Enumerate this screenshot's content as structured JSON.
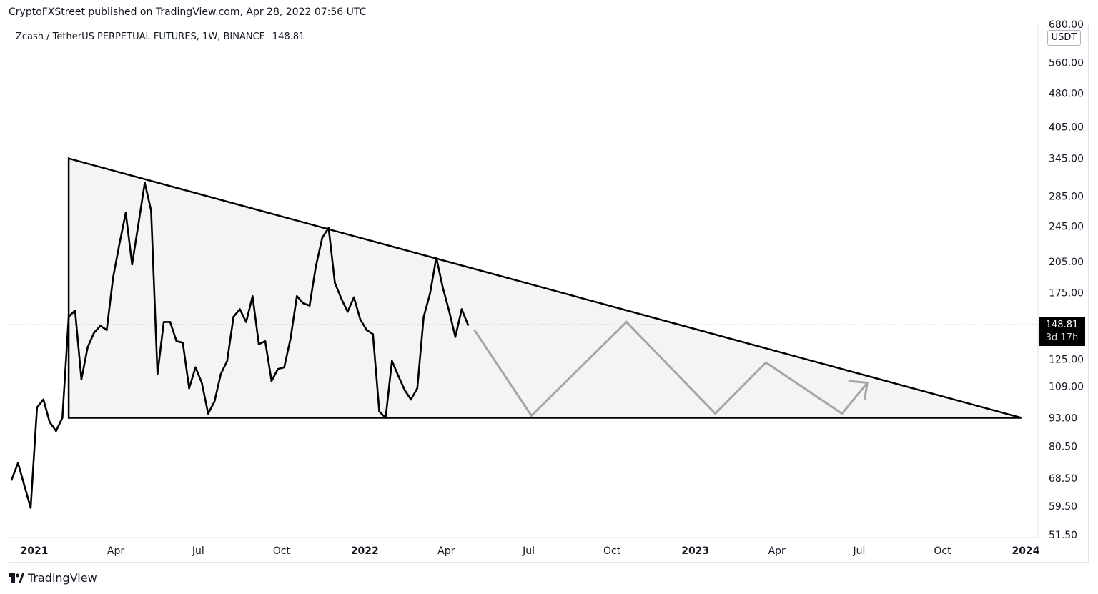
{
  "header": {
    "published_line": "CryptoFXStreet published on TradingView.com, Apr 28, 2022 07:56 UTC"
  },
  "symbol": {
    "description": "Zcash / TetherUS PERPETUAL FUTURES, 1W, BINANCE",
    "last_price": "148.81"
  },
  "currency": "USDT",
  "last_price_label": {
    "price": "148.81",
    "countdown": "3d 17h"
  },
  "brand": {
    "name": "TradingView",
    "icon": "tradingview-logo-icon"
  },
  "colors": {
    "price_line": "#000000",
    "projection": "#a6a6a6",
    "pattern_fill": "#f4f4f4",
    "pattern_edge": "#000000",
    "label_bg": "#000000"
  },
  "chart_data": {
    "type": "line",
    "scale": "log",
    "timeframe": "1W",
    "yticks": [
      "680.00",
      "560.00",
      "480.00",
      "405.00",
      "345.00",
      "285.00",
      "245.00",
      "205.00",
      "175.00",
      "125.00",
      "109.00",
      "93.00",
      "80.50",
      "68.50",
      "59.50",
      "51.50"
    ],
    "xticks": [
      {
        "label": "2021",
        "date": "2021-01-01",
        "year": true
      },
      {
        "label": "Apr",
        "date": "2021-04-01"
      },
      {
        "label": "Jul",
        "date": "2021-07-01"
      },
      {
        "label": "Oct",
        "date": "2021-10-01"
      },
      {
        "label": "2022",
        "date": "2022-01-01",
        "year": true
      },
      {
        "label": "Apr",
        "date": "2022-04-01"
      },
      {
        "label": "Jul",
        "date": "2022-07-01"
      },
      {
        "label": "Oct",
        "date": "2022-10-01"
      },
      {
        "label": "2023",
        "date": "2023-01-01",
        "year": true
      },
      {
        "label": "Apr",
        "date": "2023-04-01"
      },
      {
        "label": "Jul",
        "date": "2023-07-01"
      },
      {
        "label": "Oct",
        "date": "2023-10-01"
      },
      {
        "label": "2024",
        "date": "2024-01-01",
        "year": true
      }
    ],
    "ylim": [
      51.5,
      680
    ],
    "series": [
      {
        "values": [
          [
            "2020-12-07",
            68
          ],
          [
            "2020-12-14",
            74
          ],
          [
            "2020-12-21",
            66
          ],
          [
            "2020-12-28",
            59
          ],
          [
            "2021-01-04",
            98
          ],
          [
            "2021-01-11",
            102
          ],
          [
            "2021-01-18",
            91
          ],
          [
            "2021-01-25",
            87
          ],
          [
            "2021-02-01",
            93
          ],
          [
            "2021-02-08",
            155
          ],
          [
            "2021-02-15",
            160
          ],
          [
            "2021-02-22",
            113
          ],
          [
            "2021-03-01",
            133
          ],
          [
            "2021-03-08",
            143
          ],
          [
            "2021-03-15",
            148
          ],
          [
            "2021-03-22",
            145
          ],
          [
            "2021-03-29",
            189
          ],
          [
            "2021-04-05",
            224
          ],
          [
            "2021-04-12",
            262
          ],
          [
            "2021-04-19",
            202
          ],
          [
            "2021-04-26",
            248
          ],
          [
            "2021-05-03",
            305
          ],
          [
            "2021-05-10",
            265
          ],
          [
            "2021-05-17",
            116
          ],
          [
            "2021-05-24",
            151
          ],
          [
            "2021-05-31",
            151
          ],
          [
            "2021-06-07",
            137
          ],
          [
            "2021-06-14",
            136
          ],
          [
            "2021-06-21",
            108
          ],
          [
            "2021-06-28",
            120
          ],
          [
            "2021-07-05",
            111
          ],
          [
            "2021-07-12",
            95
          ],
          [
            "2021-07-19",
            101
          ],
          [
            "2021-07-26",
            116
          ],
          [
            "2021-08-02",
            124
          ],
          [
            "2021-08-09",
            155
          ],
          [
            "2021-08-16",
            161
          ],
          [
            "2021-08-23",
            151
          ],
          [
            "2021-08-30",
            172
          ],
          [
            "2021-09-06",
            135
          ],
          [
            "2021-09-13",
            137
          ],
          [
            "2021-09-20",
            112
          ],
          [
            "2021-09-27",
            119
          ],
          [
            "2021-10-04",
            120
          ],
          [
            "2021-10-11",
            139
          ],
          [
            "2021-10-18",
            172
          ],
          [
            "2021-10-25",
            166
          ],
          [
            "2021-11-01",
            164
          ],
          [
            "2021-11-08",
            200
          ],
          [
            "2021-11-15",
            231
          ],
          [
            "2021-11-22",
            243
          ],
          [
            "2021-11-29",
            184
          ],
          [
            "2021-12-06",
            170
          ],
          [
            "2021-12-13",
            159
          ],
          [
            "2021-12-20",
            171
          ],
          [
            "2021-12-27",
            153
          ],
          [
            "2022-01-03",
            145
          ],
          [
            "2022-01-10",
            142
          ],
          [
            "2022-01-17",
            96
          ],
          [
            "2022-01-24",
            93
          ],
          [
            "2022-01-31",
            124
          ],
          [
            "2022-02-07",
            115
          ],
          [
            "2022-02-14",
            107
          ],
          [
            "2022-02-21",
            102
          ],
          [
            "2022-02-28",
            108
          ],
          [
            "2022-03-07",
            155
          ],
          [
            "2022-03-14",
            174
          ],
          [
            "2022-03-21",
            209
          ],
          [
            "2022-03-28",
            180
          ],
          [
            "2022-04-04",
            160
          ],
          [
            "2022-04-11",
            140
          ],
          [
            "2022-04-18",
            161
          ],
          [
            "2022-04-25",
            148.81
          ]
        ]
      }
    ],
    "projection_path": [
      [
        "2022-05-02",
        145
      ],
      [
        "2022-07-04",
        94
      ],
      [
        "2022-10-17",
        151
      ],
      [
        "2023-01-23",
        95
      ],
      [
        "2023-03-20",
        123
      ],
      [
        "2023-06-12",
        95
      ],
      [
        "2023-07-10",
        111
      ]
    ],
    "projection_arrow": {
      "to": [
        "2023-07-10",
        111
      ],
      "head_a": [
        "2023-06-19",
        112
      ],
      "head_b": [
        "2023-07-07",
        102
      ]
    },
    "pattern": {
      "name": "descending triangle",
      "vertices": [
        [
          "2021-02-08",
          345
        ],
        [
          "2023-12-27",
          93
        ],
        [
          "2021-02-08",
          93
        ]
      ]
    }
  }
}
